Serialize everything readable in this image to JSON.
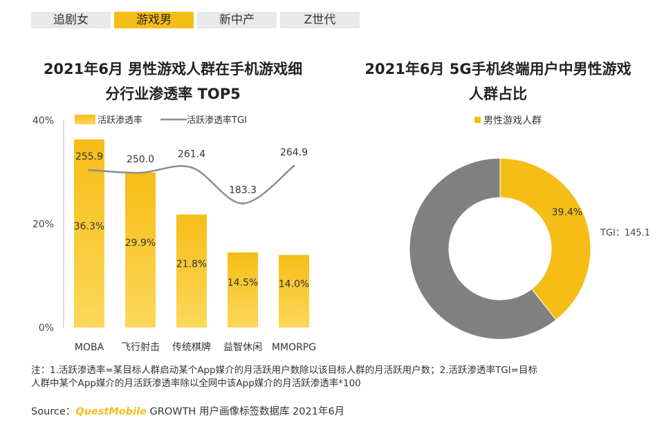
{
  "tabs": [
    {
      "label": "追剧女"
    },
    {
      "label": "游戏男"
    },
    {
      "label": "新中产"
    },
    {
      "label": "Z世代"
    }
  ],
  "active_tab_index": 1,
  "colors": {
    "accent": "#f6bd16",
    "accent_light": "#fbd54a",
    "line": "#8c8c8c",
    "donut_rest": "#808080",
    "tab_bg": "#e9e9e9"
  },
  "chart_data": [
    {
      "type": "bar",
      "title": "2021年6月 男性游戏人群在手机游戏细分行业渗透率 TOP5",
      "title_lines": [
        "2021年6月 男性游戏人群在手机游戏细",
        "分行业渗透率 TOP5"
      ],
      "categories": [
        "MOBA",
        "飞行射击",
        "传统棋牌",
        "益智休闲",
        "MMORPG"
      ],
      "series": [
        {
          "name": "活跃渗透率",
          "type": "bar",
          "axis": "left",
          "values": [
            36.3,
            29.9,
            21.8,
            14.5,
            14.0
          ],
          "labels": [
            "36.3%",
            "29.9%",
            "21.8%",
            "14.5%",
            "14.0%"
          ]
        },
        {
          "name": "活跃渗透率TGI",
          "type": "line",
          "axis": "hidden",
          "values": [
            255.9,
            250.0,
            261.4,
            183.3,
            264.9
          ],
          "labels": [
            "255.9",
            "250.0",
            "261.4",
            "183.3",
            "264.9"
          ]
        }
      ],
      "y_ticks": [
        "40%",
        "20%",
        "0%"
      ],
      "ylim": [
        0,
        40
      ],
      "legend_position": "top",
      "grid": false
    },
    {
      "type": "pie",
      "variant": "donut",
      "title": "2021年6月 5G手机终端用户中男性游戏人群占比",
      "title_lines": [
        "2021年6月 5G手机终端用户中男性游戏",
        "人群占比"
      ],
      "slices": [
        {
          "name": "男性游戏人群",
          "value": 39.4,
          "label": "39.4%"
        },
        {
          "name": "",
          "value": 60.6,
          "label": ""
        }
      ],
      "annotation": "TGI：145.1",
      "legend": [
        "男性游戏人群"
      ],
      "legend_position": "top"
    }
  ],
  "note": {
    "line1": "注：1.活跃渗透率=某目标人群启动某个App媒介的月活跃用户数除以该目标人群的月活跃用户数；2.活跃渗透率TGI=目标",
    "line2": "人群中某个App媒介的月活跃渗透率除以全网中该App媒介的月活跃渗透率*100"
  },
  "source": {
    "prefix": "Source：",
    "brand": "QuestMobile",
    "suffix": " GROWTH 用户画像标签数据库 2021年6月"
  }
}
